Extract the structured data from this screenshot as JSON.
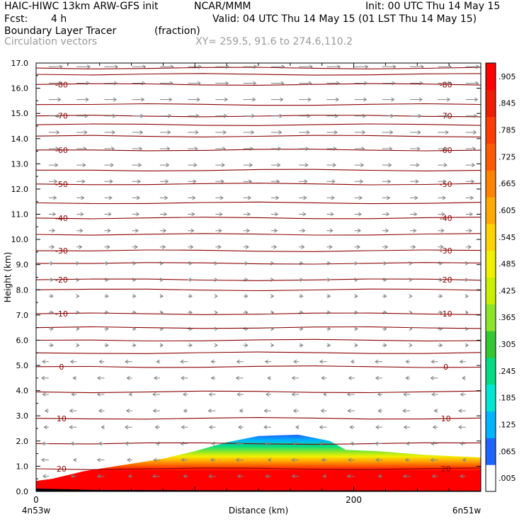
{
  "header": {
    "model": "HAIC-HIWC 13km ARW-GFS init",
    "org": "NCAR/MMM",
    "init": "Init: 00 UTC Thu 14 May 15",
    "fcst_label": "Fcst:",
    "fcst_value": "4 h",
    "valid": "Valid: 04 UTC Thu 14 May 15 (01 LST Thu 14 May 15)",
    "field": "Boundary Layer Tracer",
    "field_units": "(fraction)",
    "vectors": "Circulation vectors",
    "xy": "XY= 259.5, 91.6 to 274.6,110.2"
  },
  "chart_data": {
    "type": "heatmap",
    "ylabel": "Height (km)",
    "xlabel": "Distance (km)",
    "x_range": [
      0,
      280
    ],
    "ylim": [
      0,
      17
    ],
    "y_ticks": [
      "0.0",
      "1.0",
      "2.0",
      "3.0",
      "4.0",
      "5.0",
      "6.0",
      "7.0",
      "8.0",
      "9.0",
      "10.0",
      "11.0",
      "12.0",
      "13.0",
      "14.0",
      "15.0",
      "16.0",
      "17.0"
    ],
    "x_ticks": [
      {
        "value": 0,
        "label": "0"
      },
      {
        "value": 200,
        "label": "200"
      }
    ],
    "x_endpoints": {
      "left": "4n53w",
      "right": "6n51w"
    },
    "colorbar": {
      "labels": [
        ".005",
        ".065",
        ".125",
        ".185",
        ".245",
        ".305",
        ".365",
        ".425",
        ".485",
        ".545",
        ".605",
        ".665",
        ".725",
        ".785",
        ".845",
        ".905"
      ],
      "colors": [
        "#ffffff",
        "#1e64ff",
        "#00b4ff",
        "#00e6d2",
        "#00dc82",
        "#32c832",
        "#8ce628",
        "#c8f000",
        "#f0f000",
        "#ffd200",
        "#ffaa00",
        "#ff8200",
        "#ff5a00",
        "#ff3c00",
        "#f01e00",
        "#ff0000"
      ]
    },
    "isotherms": {
      "color": "#8b0000",
      "levels": [
        {
          "label": "-80",
          "h": 16.15
        },
        {
          "label": "-70",
          "h": 14.9
        },
        {
          "label": "-60",
          "h": 13.55
        },
        {
          "label": "-50",
          "h": 12.2
        },
        {
          "label": "-40",
          "h": 10.85
        },
        {
          "label": "-30",
          "h": 9.55
        },
        {
          "label": "-20",
          "h": 8.4
        },
        {
          "label": "-10",
          "h": 7.05
        },
        {
          "label": "0",
          "h": 4.95
        },
        {
          "label": "10",
          "h": 2.9
        },
        {
          "label": "20",
          "h": 0.9
        }
      ],
      "extra_lines": [
        16.8,
        16.55,
        15.35,
        14.55,
        14.1,
        12.75,
        11.45,
        10.2,
        9.05,
        8.0,
        6.5,
        6.0,
        5.5,
        3.95,
        1.9
      ]
    },
    "tracer_top_km": [
      {
        "x": 0,
        "h": 0.42
      },
      {
        "x": 10,
        "h": 0.5
      },
      {
        "x": 30,
        "h": 0.8
      },
      {
        "x": 55,
        "h": 1.05
      },
      {
        "x": 80,
        "h": 1.3
      },
      {
        "x": 100,
        "h": 1.6
      },
      {
        "x": 120,
        "h": 1.95
      },
      {
        "x": 140,
        "h": 2.2
      },
      {
        "x": 165,
        "h": 2.25
      },
      {
        "x": 185,
        "h": 2.0
      },
      {
        "x": 195,
        "h": 1.65
      },
      {
        "x": 215,
        "h": 1.6
      },
      {
        "x": 245,
        "h": 1.45
      },
      {
        "x": 280,
        "h": 1.35
      }
    ]
  }
}
